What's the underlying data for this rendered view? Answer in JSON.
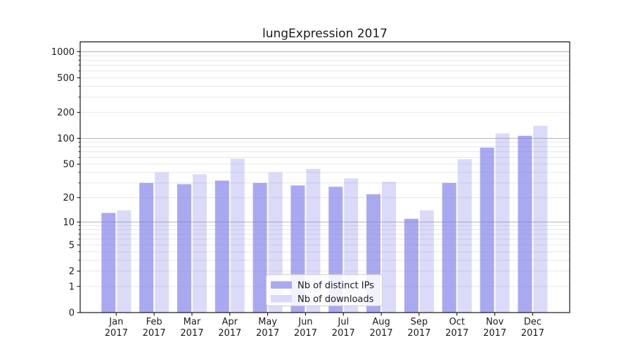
{
  "title": "lungExpression 2017",
  "chart_data": {
    "type": "bar",
    "title": "lungExpression 2017",
    "year_label": "2017",
    "categories": [
      "Jan 2017",
      "Feb 2017",
      "Mar 2017",
      "Apr 2017",
      "May 2017",
      "Jun 2017",
      "Jul 2017",
      "Aug 2017",
      "Sep 2017",
      "Oct 2017",
      "Nov 2017",
      "Dec 2017"
    ],
    "series": [
      {
        "name": "Nb of distinct IPs",
        "swatch_color": "#a9a9f1",
        "fill_base": "#7d7dea",
        "fill_opacity": 0.66,
        "values": [
          13,
          30,
          29,
          32,
          30,
          28,
          27,
          22,
          11,
          30,
          78,
          107
        ]
      },
      {
        "name": "Nb of downloads",
        "swatch_color": "#d9d9f8",
        "fill_base": "#7d7dea",
        "fill_opacity": 0.28,
        "values": [
          14,
          40,
          38,
          58,
          40,
          44,
          34,
          31,
          14,
          57,
          114,
          140
        ]
      }
    ],
    "yscale": "log1p",
    "ylim": [
      0,
      1300
    ],
    "yticks": [
      0,
      1,
      2,
      5,
      10,
      20,
      50,
      100,
      200,
      500,
      1000
    ],
    "major_gridlines": [
      10,
      100,
      1000
    ],
    "minor_gridlines": [
      1,
      2,
      3,
      4,
      5,
      6,
      7,
      8,
      9,
      20,
      30,
      40,
      50,
      60,
      70,
      80,
      90,
      200,
      300,
      400,
      500,
      600,
      700,
      800,
      900
    ],
    "grid": true,
    "xlabel": "",
    "ylabel": "",
    "legend_position": "lower-center"
  },
  "legend": {
    "items": [
      {
        "label": "Nb of distinct IPs"
      },
      {
        "label": "Nb of downloads"
      }
    ]
  },
  "colors": {
    "background": "#ffffff",
    "axis": "#000000",
    "text": "#1a1a1a",
    "major_grid": "#b3b3b3",
    "minor_grid": "#e6e6e6",
    "bar_distinct_ips": "#a9a9f1",
    "bar_downloads": "#d9d9f8",
    "legend_background": "#ffffff",
    "legend_border": "#cccccc"
  }
}
